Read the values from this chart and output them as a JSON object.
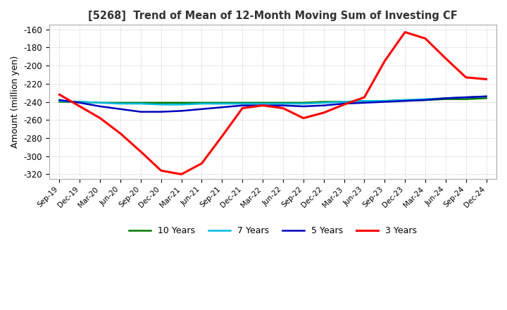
{
  "title": "[5268]  Trend of Mean of 12-Month Moving Sum of Investing CF",
  "ylabel": "Amount (million yen)",
  "ylim": [
    -325,
    -155
  ],
  "yticks": [
    -320,
    -300,
    -280,
    -260,
    -240,
    -220,
    -200,
    -180,
    -160
  ],
  "background_color": "#ffffff",
  "legend_entries": [
    "3 Years",
    "5 Years",
    "7 Years",
    "10 Years"
  ],
  "legend_colors": [
    "#ff0000",
    "#0000bb",
    "#00bbdd",
    "#007700"
  ],
  "x_labels": [
    "Sep-19",
    "Dec-19",
    "Mar-20",
    "Jun-20",
    "Sep-20",
    "Dec-20",
    "Mar-21",
    "Jun-21",
    "Sep-21",
    "Dec-21",
    "Mar-22",
    "Jun-22",
    "Sep-22",
    "Dec-22",
    "Mar-23",
    "Jun-23",
    "Sep-23",
    "Dec-23",
    "Mar-24",
    "Jun-24",
    "Sep-24",
    "Dec-24"
  ],
  "series_3y": [
    -232,
    -245,
    -258,
    -275,
    -295,
    -316,
    -320,
    -308,
    -278,
    -247,
    -244,
    -247,
    -258,
    -252,
    -243,
    -235,
    -195,
    -163,
    -170,
    -192,
    -213,
    -215
  ],
  "series_5y": [
    -238,
    -241,
    -245,
    -248,
    -251,
    -251,
    -250,
    -248,
    -246,
    -244,
    -244,
    -244,
    -245,
    -244,
    -242,
    -241,
    -240,
    -239,
    -238,
    -236,
    -235,
    -234
  ],
  "series_7y": [
    -239,
    -240,
    -241,
    -242,
    -242,
    -243,
    -243,
    -242,
    -242,
    -242,
    -242,
    -242,
    -242,
    -241,
    -240,
    -239,
    -239,
    -238,
    -237,
    -236,
    -235,
    -234
  ],
  "series_10y": [
    -240,
    -240,
    -241,
    -241,
    -241,
    -241,
    -241,
    -241,
    -241,
    -241,
    -241,
    -241,
    -241,
    -240,
    -240,
    -239,
    -239,
    -238,
    -238,
    -237,
    -237,
    -236
  ]
}
